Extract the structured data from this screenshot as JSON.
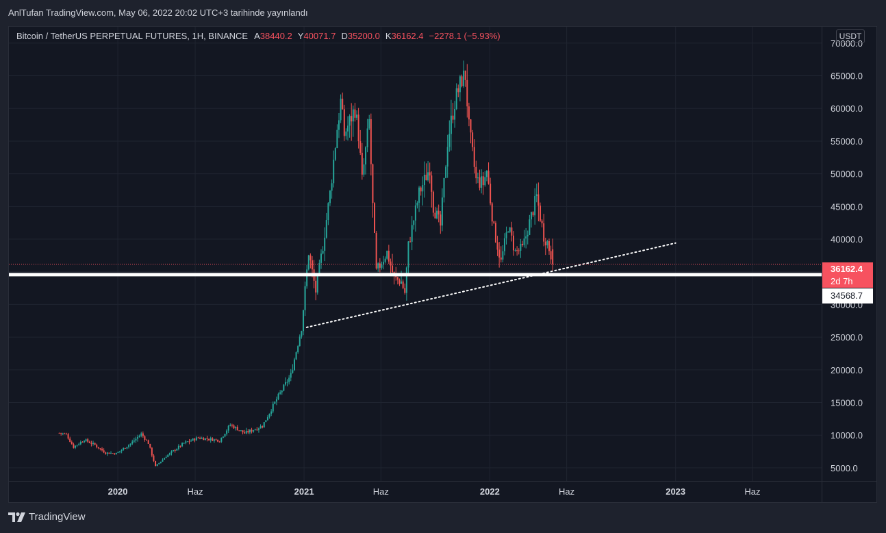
{
  "header": {
    "publish_line": "AnlTufan TradingView.com, May 06, 2022 20:02 UTC+3 tarihinde yayınlandı"
  },
  "legend": {
    "symbol": "Bitcoin / TetherUS PERPETUAL FUTURES, 1H, BINANCE",
    "open_key": "A",
    "open": "38440.2",
    "high_key": "Y",
    "high": "40071.7",
    "low_key": "D",
    "low": "35200.0",
    "close_key": "K",
    "close": "36162.4",
    "change": "−2278.1 (−5.93%)"
  },
  "currency": "USDT",
  "tags": {
    "last_price": "36162.4",
    "countdown": "2d 7h",
    "level": "34568.7"
  },
  "brand": {
    "name": "TradingView",
    "icon": "tradingview-logo-icon"
  },
  "colors": {
    "up": "#26a69a",
    "down": "#ef5350",
    "background": "#131722",
    "grid": "#1f2430",
    "level_line": "#ffffff"
  },
  "chart_data": {
    "type": "candlestick",
    "title": "Bitcoin / TetherUS PERPETUAL FUTURES, 1H, BINANCE",
    "y_axis": {
      "unit": "USDT",
      "range": [
        3000,
        72500
      ],
      "ticks": [
        5000,
        10000,
        15000,
        20000,
        25000,
        30000,
        35000,
        40000,
        45000,
        50000,
        55000,
        60000,
        65000,
        70000
      ],
      "tick_labels": [
        "5000.0",
        "10000.0",
        "15000.0",
        "20000.0",
        "25000.0",
        "30000.0",
        "35000.0",
        "40000.0",
        "45000.0",
        "50000.0",
        "55000.0",
        "60000.0",
        "65000.0",
        "70000.0"
      ]
    },
    "x_axis": {
      "range": [
        "2019-06-01",
        "2023-10-15"
      ],
      "tick_dates": [
        "2020-01-01",
        "2020-06-01",
        "2021-01-01",
        "2021-06-01",
        "2022-01-01",
        "2022-06-01",
        "2023-01-01",
        "2023-06-01"
      ],
      "tick_labels": [
        "2020",
        "Haz",
        "2021",
        "Haz",
        "2022",
        "Haz",
        "2023",
        "Haz"
      ],
      "bold_ticks": [
        "2020",
        "2021",
        "2022",
        "2023"
      ]
    },
    "horizontal_level": 34568.7,
    "last_price": 36162.4,
    "trendline": {
      "style": "dotted",
      "points": [
        [
          "2021-01-06",
          26500
        ],
        [
          "2023-01-01",
          39400
        ]
      ]
    },
    "candle_anchors": [
      [
        "2019-09-08",
        10350
      ],
      [
        "2019-09-22",
        10100
      ],
      [
        "2019-10-06",
        8200
      ],
      [
        "2019-10-27",
        9300
      ],
      [
        "2019-11-17",
        8500
      ],
      [
        "2019-12-08",
        7300
      ],
      [
        "2019-12-29",
        7200
      ],
      [
        "2020-01-26",
        8700
      ],
      [
        "2020-02-16",
        10200
      ],
      [
        "2020-03-01",
        8800
      ],
      [
        "2020-03-15",
        5200
      ],
      [
        "2020-04-05",
        6800
      ],
      [
        "2020-05-10",
        8800
      ],
      [
        "2020-06-07",
        9600
      ],
      [
        "2020-07-19",
        9200
      ],
      [
        "2020-08-09",
        11600
      ],
      [
        "2020-09-06",
        10300
      ],
      [
        "2020-10-11",
        11400
      ],
      [
        "2020-11-08",
        15500
      ],
      [
        "2020-12-06",
        19200
      ],
      [
        "2020-12-27",
        26500
      ],
      [
        "2021-01-10",
        38000
      ],
      [
        "2021-01-24",
        32000
      ],
      [
        "2021-02-07",
        39000
      ],
      [
        "2021-02-21",
        47000
      ],
      [
        "2021-03-07",
        57000
      ],
      [
        "2021-03-14",
        61000
      ],
      [
        "2021-03-21",
        56000
      ],
      [
        "2021-04-11",
        60000
      ],
      [
        "2021-04-18",
        56000
      ],
      [
        "2021-04-25",
        49000
      ],
      [
        "2021-05-09",
        58000
      ],
      [
        "2021-05-16",
        45000
      ],
      [
        "2021-05-23",
        35000
      ],
      [
        "2021-06-13",
        38000
      ],
      [
        "2021-06-27",
        34000
      ],
      [
        "2021-07-11",
        33500
      ],
      [
        "2021-07-18",
        31800
      ],
      [
        "2021-07-25",
        39000
      ],
      [
        "2021-08-15",
        47000
      ],
      [
        "2021-09-05",
        51000
      ],
      [
        "2021-09-12",
        45000
      ],
      [
        "2021-09-26",
        42000
      ],
      [
        "2021-10-10",
        55000
      ],
      [
        "2021-10-24",
        61000
      ],
      [
        "2021-11-07",
        64500
      ],
      [
        "2021-11-14",
        65000
      ],
      [
        "2021-11-21",
        57000
      ],
      [
        "2021-12-05",
        49000
      ],
      [
        "2021-12-19",
        48500
      ],
      [
        "2021-12-26",
        50500
      ],
      [
        "2022-01-09",
        41500
      ],
      [
        "2022-01-23",
        36500
      ],
      [
        "2022-02-06",
        42000
      ],
      [
        "2022-02-20",
        38000
      ],
      [
        "2022-03-06",
        38500
      ],
      [
        "2022-03-20",
        42500
      ],
      [
        "2022-04-03",
        46500
      ],
      [
        "2022-04-17",
        40500
      ],
      [
        "2022-04-24",
        39500
      ],
      [
        "2022-05-06",
        36162.4
      ]
    ],
    "grid": true,
    "legend_position": "top-left"
  }
}
